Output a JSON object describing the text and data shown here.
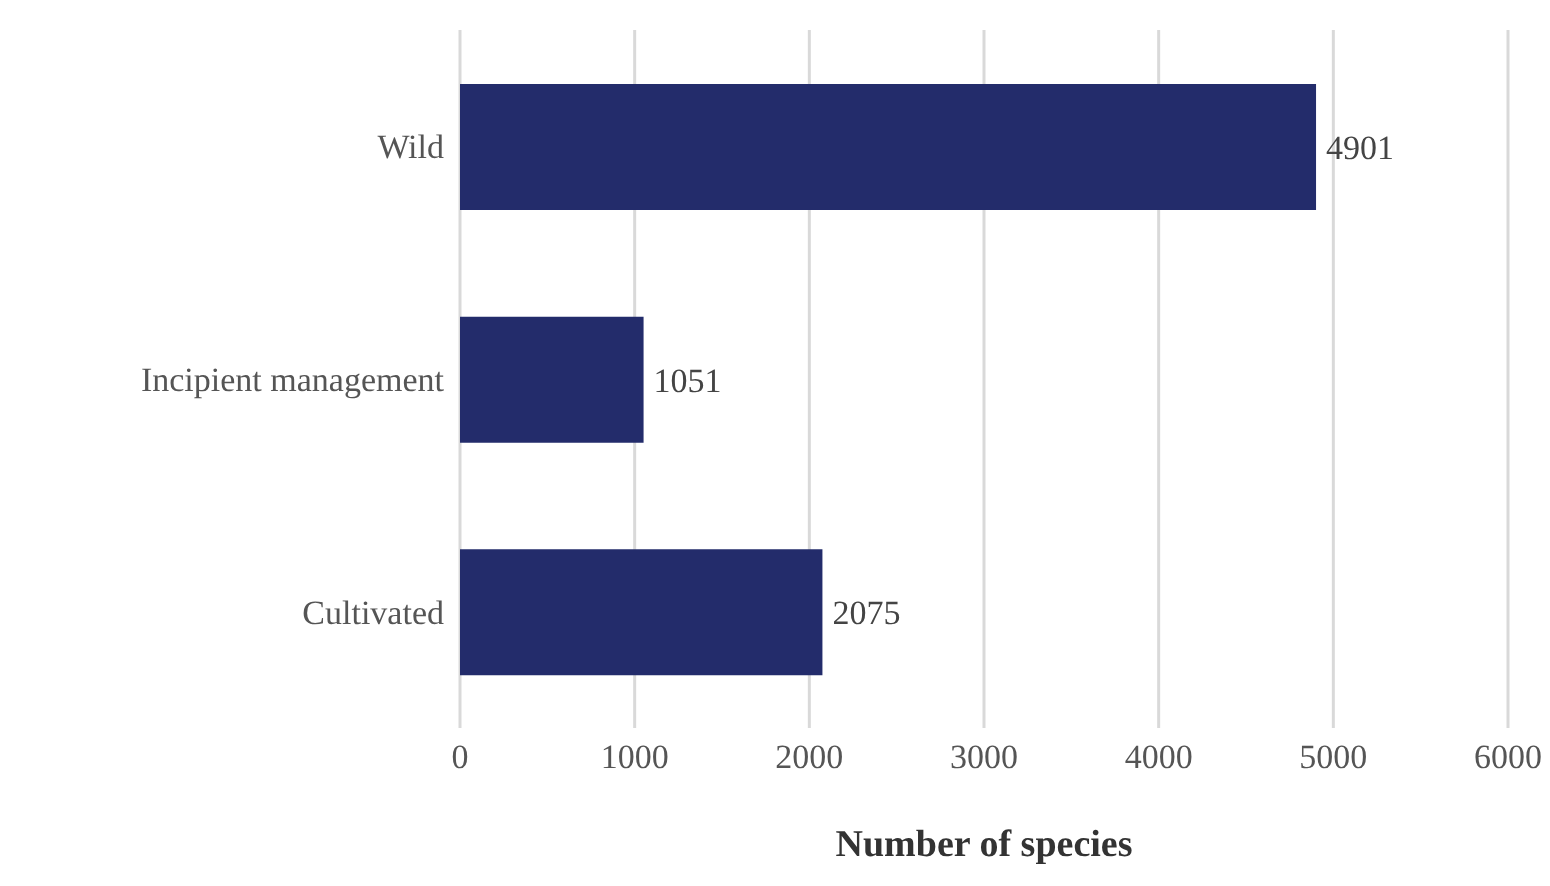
{
  "chart_data": {
    "type": "bar",
    "orientation": "horizontal",
    "categories": [
      "Wild",
      "Incipient management",
      "Cultivated"
    ],
    "values": [
      4901,
      1051,
      2075
    ],
    "color": "#232c6b",
    "xlabel": "Number of species",
    "xlim": [
      0,
      6000
    ],
    "xticks": [
      0,
      1000,
      2000,
      3000,
      4000,
      5000,
      6000
    ],
    "grid": "x",
    "data_labels": true,
    "legend": false
  }
}
